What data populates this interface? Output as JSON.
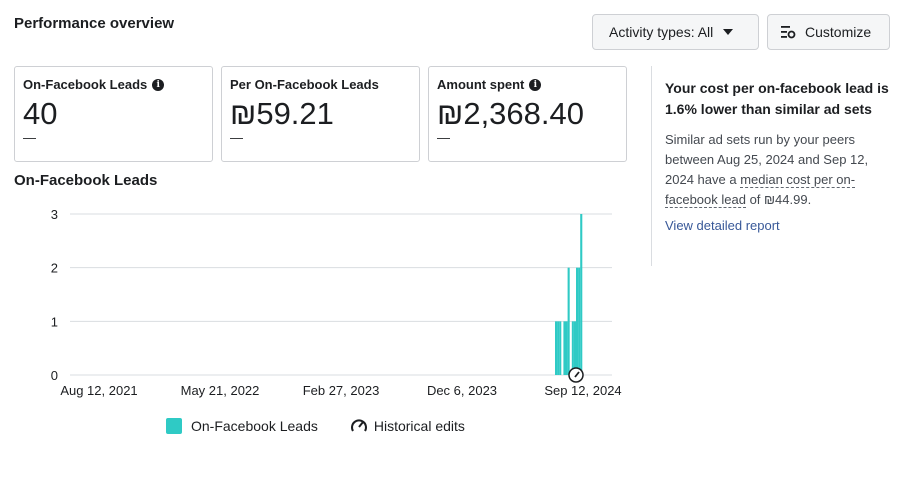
{
  "header": {
    "title": "Performance overview",
    "activity_button": "Activity types: All",
    "customize_button": "Customize"
  },
  "cards": [
    {
      "title": "On-Facebook Leads",
      "value": "40",
      "dash": "—",
      "info": true
    },
    {
      "title": "Per On-Facebook Leads",
      "value": "₪59.21",
      "dash": "—",
      "info": false
    },
    {
      "title": "Amount spent",
      "value": "₪2,368.40",
      "dash": "—",
      "info": true
    }
  ],
  "info_glyph": "i",
  "chart_title": "On-Facebook Leads",
  "chart_data": {
    "type": "bar",
    "title": "On-Facebook Leads",
    "xlabel": "",
    "ylabel": "",
    "ylim": [
      0,
      3
    ],
    "y_ticks": [
      "0",
      "1",
      "2",
      "3"
    ],
    "x_tick_labels": [
      "Aug 12, 2021",
      "May 21, 2022",
      "Feb 27, 2023",
      "Dec 6, 2023",
      "Sep 12, 2024"
    ],
    "grid": true,
    "legend_position": "bottom",
    "series": [
      {
        "name": "On-Facebook Leads",
        "color": "#2fcac5",
        "values": [
          1,
          1,
          1,
          0,
          1,
          1,
          2,
          0,
          1,
          1,
          2,
          2,
          3
        ]
      }
    ]
  },
  "legend": {
    "series_label": "On-Facebook Leads",
    "edits_label": "Historical edits"
  },
  "side": {
    "heading": "Your cost per on-facebook lead is 1.6% lower than similar ad sets",
    "body_pre": "Similar ad sets run by your peers between Aug 25, 2024 and Sep 12, 2024 have a ",
    "body_term": "median cost per on-facebook lead",
    "body_post": " of ₪44.99.",
    "link": "View detailed report"
  },
  "colors": {
    "accent": "#2fcac5",
    "link": "#385898"
  }
}
